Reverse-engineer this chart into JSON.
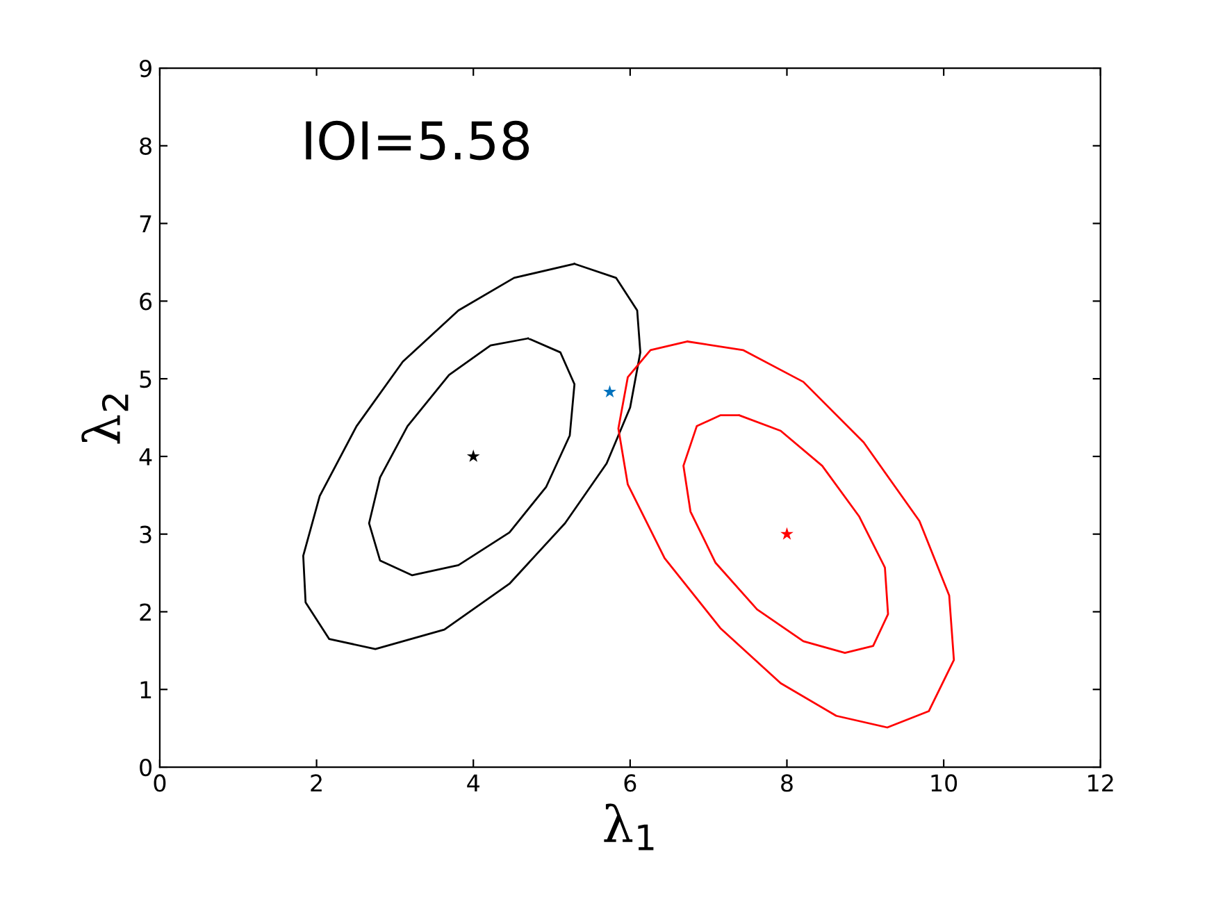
{
  "chart_data": {
    "type": "scatter",
    "xlabel": "λ$_{1}$",
    "ylabel": "λ$_{2}$",
    "annotations": [
      "IOI=5.58"
    ],
    "xlim": [
      0,
      12
    ],
    "ylim": [
      0,
      9
    ],
    "xticks": [
      0,
      2,
      4,
      6,
      8,
      10,
      12
    ],
    "yticks": [
      0,
      1,
      2,
      3,
      4,
      5,
      6,
      7,
      8,
      9
    ],
    "grid": false,
    "legend": false,
    "series": [
      {
        "color": "#000000",
        "marker": "star",
        "x": [
          4
        ],
        "values": [
          4
        ]
      },
      {
        "color": "#ff0000",
        "marker": "star",
        "x": [
          8
        ],
        "values": [
          3
        ]
      },
      {
        "color": "#0072bd",
        "marker": "star",
        "x": [
          5.74
        ],
        "values": [
          4.83
        ]
      }
    ]
  }
}
